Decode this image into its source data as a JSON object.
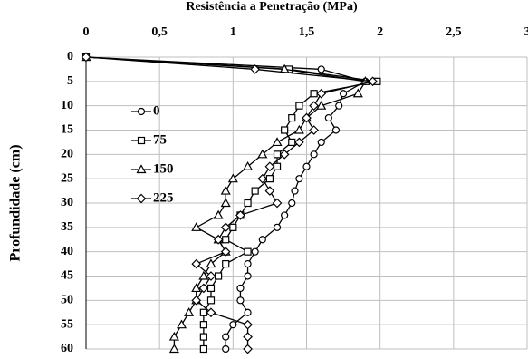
{
  "chart_data": {
    "type": "line",
    "orientation": "depth-profile",
    "title": "Resistência a Penetração (MPa)",
    "y_label": "Profundidade (cm)",
    "y": [
      0,
      2.5,
      5,
      7.5,
      10,
      12.5,
      15,
      17.5,
      20,
      22.5,
      25,
      27.5,
      30,
      32.5,
      35,
      37.5,
      40,
      42.5,
      45,
      47.5,
      50,
      52.5,
      55,
      57.5,
      60
    ],
    "xlim": [
      0,
      3
    ],
    "xticks": [
      0,
      {
        "value": 0.5,
        "label": "0,5"
      },
      1,
      {
        "value": 1.5,
        "label": "1,5"
      },
      2,
      {
        "value": 2.5,
        "label": "2,5"
      },
      3
    ],
    "ylim": [
      0,
      60
    ],
    "yticks": [
      0,
      5,
      10,
      15,
      20,
      25,
      30,
      35,
      40,
      45,
      50,
      55,
      60
    ],
    "y_inverted": true,
    "grid": true,
    "series": [
      {
        "name": "0",
        "color": "#000000",
        "marker": "circle",
        "values": [
          0,
          1.6,
          1.9,
          1.75,
          1.72,
          1.65,
          1.7,
          1.6,
          1.55,
          1.5,
          1.45,
          1.42,
          1.4,
          1.35,
          1.3,
          1.2,
          1.15,
          1.1,
          1.1,
          1.05,
          1.05,
          1.1,
          1.0,
          0.95,
          0.95
        ]
      },
      {
        "name": "75",
        "color": "#000000",
        "marker": "square",
        "values": [
          0,
          1.38,
          1.98,
          1.55,
          1.45,
          1.4,
          1.35,
          1.4,
          1.3,
          1.3,
          1.25,
          1.15,
          1.1,
          1.05,
          1.0,
          0.95,
          1.1,
          0.95,
          0.9,
          0.85,
          0.85,
          0.8,
          0.8,
          0.8,
          0.8
        ]
      },
      {
        "name": "150",
        "color": "#000000",
        "marker": "triangle",
        "values": [
          0,
          1.35,
          1.9,
          1.85,
          1.6,
          1.5,
          1.45,
          1.3,
          1.2,
          1.1,
          1.0,
          0.95,
          0.95,
          0.9,
          0.75,
          0.9,
          0.95,
          0.85,
          0.8,
          0.75,
          0.75,
          0.7,
          0.65,
          0.6,
          0.6
        ]
      },
      {
        "name": "225",
        "color": "#000000",
        "marker": "diamond",
        "values": [
          0,
          1.15,
          1.95,
          1.6,
          1.55,
          1.5,
          1.55,
          1.45,
          1.35,
          1.25,
          1.2,
          1.25,
          1.3,
          1.05,
          0.95,
          0.9,
          0.95,
          0.75,
          0.85,
          0.8,
          0.75,
          0.85,
          1.1,
          1.1,
          1.1
        ]
      }
    ]
  }
}
